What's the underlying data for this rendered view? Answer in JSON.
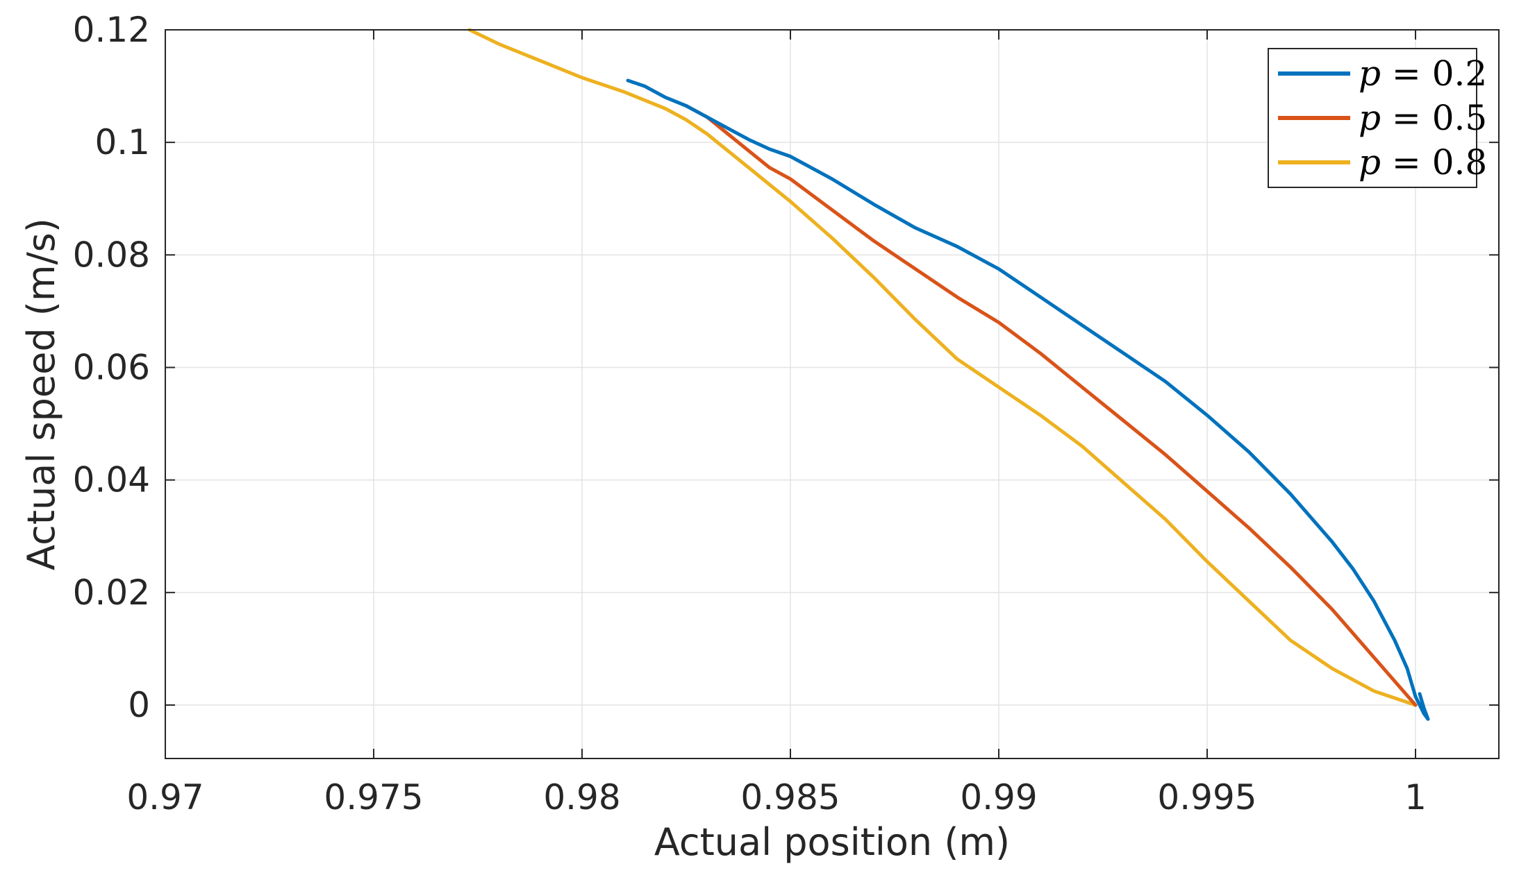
{
  "chart_data": {
    "type": "line",
    "xlabel": "Actual position (m)",
    "ylabel": "Actual speed (m/s)",
    "xlim": [
      0.97,
      1.002
    ],
    "ylim": [
      -0.0095,
      0.12
    ],
    "xticks": [
      0.97,
      0.975,
      0.98,
      0.985,
      0.99,
      0.995,
      1
    ],
    "xtick_labels": [
      "0.97",
      "0.975",
      "0.98",
      "0.985",
      "0.99",
      "0.995",
      "1"
    ],
    "yticks": [
      0,
      0.02,
      0.04,
      0.06,
      0.08,
      0.1,
      0.12
    ],
    "ytick_labels": [
      "0",
      "0.02",
      "0.04",
      "0.06",
      "0.08",
      "0.1",
      "0.12"
    ],
    "grid": true,
    "legend_position": "top-right",
    "series": [
      {
        "name": "p = 0.2",
        "legend_var": "p",
        "legend_rest": " = 0.2",
        "color": "#0072BD",
        "x": [
          0.9811,
          0.9815,
          0.982,
          0.9825,
          0.983,
          0.9835,
          0.984,
          0.9845,
          0.985,
          0.986,
          0.987,
          0.988,
          0.989,
          0.99,
          0.991,
          0.992,
          0.993,
          0.994,
          0.995,
          0.996,
          0.997,
          0.998,
          0.9985,
          0.999,
          0.9995,
          0.9998,
          1.0,
          1.0002,
          1.0003,
          1.0002,
          1.0001
        ],
        "y": [
          0.111,
          0.11,
          0.108,
          0.1065,
          0.1045,
          0.1025,
          0.1005,
          0.0988,
          0.0975,
          0.0935,
          0.089,
          0.0848,
          0.0815,
          0.0775,
          0.0725,
          0.0675,
          0.0625,
          0.0575,
          0.0515,
          0.045,
          0.0375,
          0.029,
          0.0242,
          0.0185,
          0.0115,
          0.0065,
          0.0015,
          -0.0015,
          -0.0025,
          -0.0005,
          0.002
        ]
      },
      {
        "name": "p = 0.5",
        "legend_var": "p",
        "legend_rest": " = 0.5",
        "color": "#D95319",
        "x": [
          0.9825,
          0.983,
          0.9835,
          0.984,
          0.9845,
          0.985,
          0.986,
          0.987,
          0.988,
          0.989,
          0.99,
          0.991,
          0.992,
          0.993,
          0.994,
          0.995,
          0.996,
          0.997,
          0.998,
          0.999,
          1.0
        ],
        "y": [
          0.1065,
          0.1045,
          0.1015,
          0.0985,
          0.0955,
          0.0935,
          0.088,
          0.0825,
          0.0775,
          0.0725,
          0.068,
          0.0625,
          0.0565,
          0.0505,
          0.0445,
          0.038,
          0.0315,
          0.0245,
          0.017,
          0.0085,
          0.0
        ]
      },
      {
        "name": "p = 0.8",
        "legend_var": "p",
        "legend_rest": " = 0.8",
        "color": "#EDB120",
        "x": [
          0.9773,
          0.978,
          0.979,
          0.98,
          0.981,
          0.982,
          0.9825,
          0.983,
          0.9835,
          0.984,
          0.9845,
          0.985,
          0.986,
          0.987,
          0.988,
          0.989,
          0.99,
          0.991,
          0.992,
          0.993,
          0.994,
          0.995,
          0.996,
          0.997,
          0.998,
          0.999,
          1.0
        ],
        "y": [
          0.12,
          0.1175,
          0.1145,
          0.1115,
          0.109,
          0.106,
          0.104,
          0.1015,
          0.0985,
          0.0955,
          0.0925,
          0.0895,
          0.083,
          0.076,
          0.0685,
          0.0615,
          0.0565,
          0.0515,
          0.046,
          0.0395,
          0.033,
          0.0255,
          0.0185,
          0.0115,
          0.0065,
          0.0025,
          0.0
        ]
      }
    ]
  }
}
